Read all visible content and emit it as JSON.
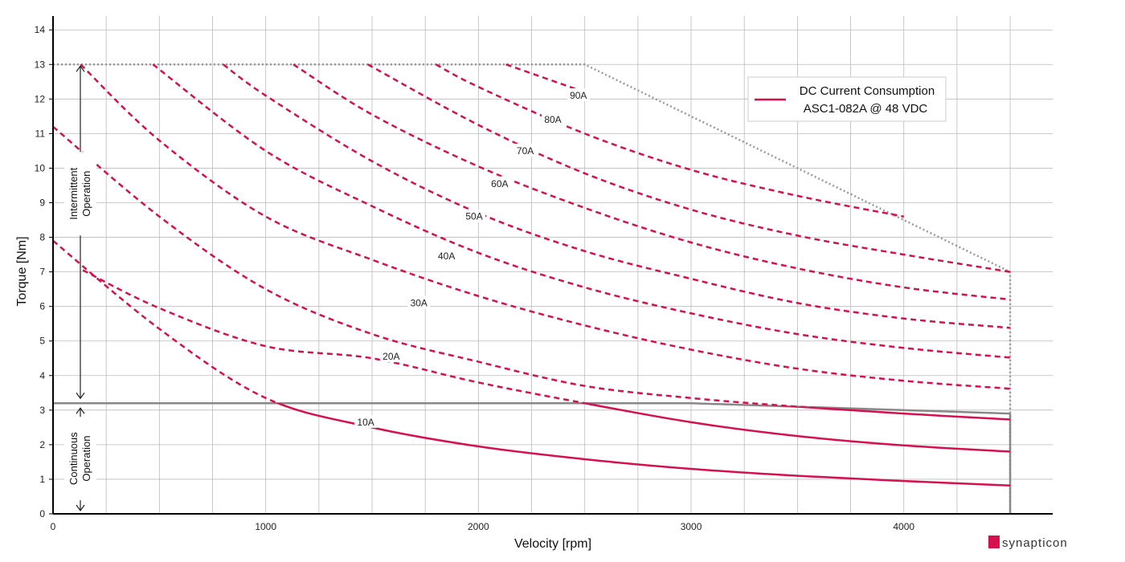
{
  "chart_data": {
    "type": "line",
    "xlabel": "Velocity [rpm]",
    "ylabel": "Torque [Nm]",
    "xlim": [
      0,
      4700
    ],
    "ylim": [
      0,
      14.4
    ],
    "x_ticks": [
      0,
      1000,
      2000,
      3000,
      4000
    ],
    "x_tick_labels": [
      "0",
      "1000",
      "2000",
      "3000",
      "4000"
    ],
    "y_ticks": [
      0,
      1,
      2,
      3,
      4,
      5,
      6,
      7,
      8,
      9,
      10,
      11,
      12,
      13,
      14
    ],
    "y_tick_labels": [
      "0",
      "1",
      "2",
      "3",
      "4",
      "5",
      "6",
      "7",
      "8",
      "9",
      "10",
      "11",
      "12",
      "13",
      "14"
    ],
    "grid": true,
    "legend": {
      "placement": "top-right",
      "color": "#d6104f",
      "lines": [
        "DC Current Consumption",
        "ASC1-082A @ 48 VDC"
      ]
    },
    "colors": {
      "current": "#d6104f",
      "continuous": "#888888",
      "envelope": "#999999"
    },
    "regions": {
      "intermittent": {
        "lines": [
          "Intermittent",
          "Operation"
        ],
        "y_range": [
          3.2,
          13
        ]
      },
      "continuous": {
        "lines": [
          "Continuous",
          "Operation"
        ],
        "y_range": [
          0,
          3.2
        ]
      }
    },
    "continuous_limit": {
      "x": [
        0,
        3000,
        4500
      ],
      "y": [
        3.2,
        3.2,
        2.9
      ]
    },
    "peak_envelope": {
      "x": [
        0,
        2500,
        4500,
        4500
      ],
      "y": [
        13,
        13,
        7,
        0
      ]
    },
    "series": [
      {
        "name": "10A",
        "label_at": [
          1470,
          2.65
        ],
        "x": [
          0,
          500,
          1000,
          1500,
          2000,
          2500,
          3000,
          3500,
          4000,
          4500
        ],
        "y": [
          7.9,
          5.35,
          3.35,
          2.5,
          1.95,
          1.58,
          1.3,
          1.1,
          0.95,
          0.82
        ]
      },
      {
        "name": "20A",
        "label_at": [
          1590,
          4.55
        ],
        "x": [
          140,
          500,
          1000,
          1500,
          2000,
          2500,
          3000,
          3500,
          4000,
          4500
        ],
        "y": [
          7.05,
          5.95,
          4.85,
          4.5,
          3.8,
          3.2,
          2.65,
          2.25,
          1.98,
          1.8
        ]
      },
      {
        "name": "30A",
        "label_at": [
          1720,
          6.1
        ],
        "x": [
          0,
          500,
          1000,
          1500,
          2000,
          2500,
          3000,
          3500,
          4000,
          4500
        ],
        "y": [
          11.2,
          8.6,
          6.5,
          5.2,
          4.4,
          3.7,
          3.35,
          3.1,
          2.9,
          2.73
        ]
      },
      {
        "name": "40A",
        "label_at": [
          1850,
          7.45
        ],
        "x": [
          130,
          500,
          1000,
          1500,
          2000,
          2500,
          3000,
          3500,
          4000,
          4500
        ],
        "y": [
          13,
          10.8,
          8.6,
          7.35,
          6.3,
          5.45,
          4.75,
          4.2,
          3.85,
          3.62
        ]
      },
      {
        "name": "50A",
        "label_at": [
          1980,
          8.6
        ],
        "x": [
          470,
          1000,
          1500,
          2000,
          2500,
          3000,
          3500,
          4000,
          4500
        ],
        "y": [
          13,
          10.5,
          8.9,
          7.55,
          6.55,
          5.8,
          5.2,
          4.8,
          4.52
        ]
      },
      {
        "name": "60A",
        "label_at": [
          2100,
          9.55
        ],
        "x": [
          800,
          1000,
          1500,
          2000,
          2500,
          3000,
          3500,
          4000,
          4500
        ],
        "y": [
          13,
          12.1,
          10.2,
          8.7,
          7.6,
          6.8,
          6.1,
          5.65,
          5.38
        ]
      },
      {
        "name": "70A",
        "label_at": [
          2220,
          10.5
        ],
        "x": [
          1130,
          1500,
          2000,
          2500,
          3000,
          3500,
          4000,
          4500
        ],
        "y": [
          13,
          11.55,
          10.05,
          8.85,
          7.85,
          7.1,
          6.55,
          6.2
        ]
      },
      {
        "name": "80A",
        "label_at": [
          2350,
          11.4
        ],
        "x": [
          1480,
          2000,
          2500,
          3000,
          3500,
          4000,
          4500
        ],
        "y": [
          13,
          11.25,
          9.85,
          8.8,
          8.05,
          7.5,
          7.0
        ]
      },
      {
        "name": "90A",
        "label_at": [
          2470,
          12.1
        ],
        "x": [
          1800,
          2000,
          2500,
          3000,
          3500,
          4000
        ],
        "y": [
          13,
          12.35,
          11.0,
          9.95,
          9.2,
          8.6
        ]
      },
      {
        "name": "",
        "x": [
          2130,
          2500
        ],
        "y": [
          13,
          12.2
        ]
      }
    ]
  },
  "brand": {
    "name": "synapticon",
    "color": "#d6104f"
  }
}
